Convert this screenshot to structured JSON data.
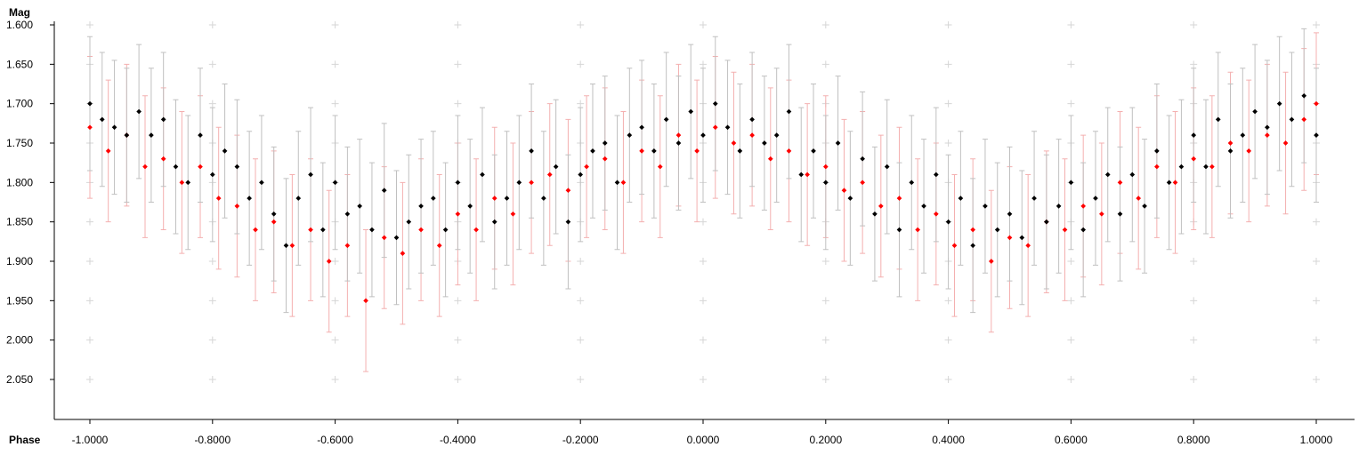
{
  "chart_data": {
    "type": "scatter",
    "title": "",
    "xlabel": "Phase",
    "ylabel": "Mag",
    "xlim": [
      -1.1,
      1.1
    ],
    "ylim": [
      1.6,
      2.1
    ],
    "y_inverted": true,
    "grid": "plus-markers",
    "x_ticks": [
      -1.0,
      -0.8,
      -0.6,
      -0.4,
      -0.2,
      0.0,
      0.2,
      0.4,
      0.6,
      0.8,
      1.0
    ],
    "x_tick_labels": [
      "-1.0000",
      "-0.8000",
      "-0.6000",
      "-0.4000",
      "-0.2000",
      "0.0000",
      "0.2000",
      "0.4000",
      "0.6000",
      "0.8000",
      "1.0000"
    ],
    "y_ticks": [
      1.6,
      1.65,
      1.7,
      1.75,
      1.8,
      1.85,
      1.9,
      1.95,
      2.0,
      2.05
    ],
    "y_tick_labels": [
      "1.600",
      "1.650",
      "1.700",
      "1.750",
      "1.800",
      "1.850",
      "1.900",
      "1.950",
      "2.000",
      "2.050"
    ],
    "series": [
      {
        "color": "#000000",
        "errorbar_color": "#c0c0c0",
        "points": [
          [
            -1.0,
            1.7
          ],
          [
            -0.98,
            1.72
          ],
          [
            -0.96,
            1.73
          ],
          [
            -0.94,
            1.74
          ],
          [
            -0.92,
            1.71
          ],
          [
            -0.9,
            1.74
          ],
          [
            -0.88,
            1.72
          ],
          [
            -0.86,
            1.78
          ],
          [
            -0.84,
            1.8
          ],
          [
            -0.82,
            1.74
          ],
          [
            -0.8,
            1.79
          ],
          [
            -0.78,
            1.76
          ],
          [
            -0.76,
            1.78
          ],
          [
            -0.74,
            1.82
          ],
          [
            -0.72,
            1.8
          ],
          [
            -0.7,
            1.84
          ],
          [
            -0.68,
            1.88
          ],
          [
            -0.66,
            1.82
          ],
          [
            -0.64,
            1.79
          ],
          [
            -0.62,
            1.86
          ],
          [
            -0.6,
            1.8
          ],
          [
            -0.58,
            1.84
          ],
          [
            -0.56,
            1.83
          ],
          [
            -0.54,
            1.86
          ],
          [
            -0.52,
            1.81
          ],
          [
            -0.5,
            1.87
          ],
          [
            -0.48,
            1.85
          ],
          [
            -0.46,
            1.83
          ],
          [
            -0.44,
            1.82
          ],
          [
            -0.42,
            1.86
          ],
          [
            -0.4,
            1.8
          ],
          [
            -0.38,
            1.83
          ],
          [
            -0.36,
            1.79
          ],
          [
            -0.34,
            1.85
          ],
          [
            -0.32,
            1.82
          ],
          [
            -0.3,
            1.8
          ],
          [
            -0.28,
            1.76
          ],
          [
            -0.26,
            1.82
          ],
          [
            -0.24,
            1.78
          ],
          [
            -0.22,
            1.85
          ],
          [
            -0.2,
            1.79
          ],
          [
            -0.18,
            1.76
          ],
          [
            -0.16,
            1.75
          ],
          [
            -0.14,
            1.8
          ],
          [
            -0.12,
            1.74
          ],
          [
            -0.1,
            1.73
          ],
          [
            -0.08,
            1.76
          ],
          [
            -0.06,
            1.72
          ],
          [
            -0.04,
            1.75
          ],
          [
            -0.02,
            1.71
          ],
          [
            0.0,
            1.74
          ],
          [
            0.02,
            1.7
          ],
          [
            0.04,
            1.73
          ],
          [
            0.06,
            1.76
          ],
          [
            0.08,
            1.72
          ],
          [
            0.1,
            1.75
          ],
          [
            0.12,
            1.74
          ],
          [
            0.14,
            1.71
          ],
          [
            0.16,
            1.79
          ],
          [
            0.18,
            1.76
          ],
          [
            0.2,
            1.8
          ],
          [
            0.22,
            1.75
          ],
          [
            0.24,
            1.82
          ],
          [
            0.26,
            1.77
          ],
          [
            0.28,
            1.84
          ],
          [
            0.3,
            1.78
          ],
          [
            0.32,
            1.86
          ],
          [
            0.34,
            1.8
          ],
          [
            0.36,
            1.83
          ],
          [
            0.38,
            1.79
          ],
          [
            0.4,
            1.85
          ],
          [
            0.42,
            1.82
          ],
          [
            0.44,
            1.88
          ],
          [
            0.46,
            1.83
          ],
          [
            0.48,
            1.86
          ],
          [
            0.5,
            1.84
          ],
          [
            0.52,
            1.87
          ],
          [
            0.54,
            1.82
          ],
          [
            0.56,
            1.85
          ],
          [
            0.58,
            1.83
          ],
          [
            0.6,
            1.8
          ],
          [
            0.62,
            1.86
          ],
          [
            0.64,
            1.82
          ],
          [
            0.66,
            1.79
          ],
          [
            0.68,
            1.84
          ],
          [
            0.7,
            1.79
          ],
          [
            0.72,
            1.83
          ],
          [
            0.74,
            1.76
          ],
          [
            0.76,
            1.8
          ],
          [
            0.78,
            1.78
          ],
          [
            0.8,
            1.74
          ],
          [
            0.82,
            1.78
          ],
          [
            0.84,
            1.72
          ],
          [
            0.86,
            1.76
          ],
          [
            0.88,
            1.74
          ],
          [
            0.9,
            1.71
          ],
          [
            0.92,
            1.73
          ],
          [
            0.94,
            1.7
          ],
          [
            0.96,
            1.72
          ],
          [
            0.98,
            1.69
          ],
          [
            1.0,
            1.74
          ]
        ]
      },
      {
        "color": "#ff0000",
        "errorbar_color": "#f4b0b0",
        "points": [
          [
            -1.0,
            1.73
          ],
          [
            -0.97,
            1.76
          ],
          [
            -0.94,
            1.74
          ],
          [
            -0.91,
            1.78
          ],
          [
            -0.88,
            1.77
          ],
          [
            -0.85,
            1.8
          ],
          [
            -0.82,
            1.78
          ],
          [
            -0.79,
            1.82
          ],
          [
            -0.76,
            1.83
          ],
          [
            -0.73,
            1.86
          ],
          [
            -0.7,
            1.85
          ],
          [
            -0.67,
            1.88
          ],
          [
            -0.64,
            1.86
          ],
          [
            -0.61,
            1.9
          ],
          [
            -0.58,
            1.88
          ],
          [
            -0.55,
            1.95
          ],
          [
            -0.52,
            1.87
          ],
          [
            -0.49,
            1.89
          ],
          [
            -0.46,
            1.86
          ],
          [
            -0.43,
            1.88
          ],
          [
            -0.4,
            1.84
          ],
          [
            -0.37,
            1.86
          ],
          [
            -0.34,
            1.82
          ],
          [
            -0.31,
            1.84
          ],
          [
            -0.28,
            1.8
          ],
          [
            -0.25,
            1.79
          ],
          [
            -0.22,
            1.81
          ],
          [
            -0.19,
            1.78
          ],
          [
            -0.16,
            1.77
          ],
          [
            -0.13,
            1.8
          ],
          [
            -0.1,
            1.76
          ],
          [
            -0.07,
            1.78
          ],
          [
            -0.04,
            1.74
          ],
          [
            -0.01,
            1.76
          ],
          [
            0.02,
            1.73
          ],
          [
            0.05,
            1.75
          ],
          [
            0.08,
            1.74
          ],
          [
            0.11,
            1.77
          ],
          [
            0.14,
            1.76
          ],
          [
            0.17,
            1.79
          ],
          [
            0.2,
            1.78
          ],
          [
            0.23,
            1.81
          ],
          [
            0.26,
            1.8
          ],
          [
            0.29,
            1.83
          ],
          [
            0.32,
            1.82
          ],
          [
            0.35,
            1.86
          ],
          [
            0.38,
            1.84
          ],
          [
            0.41,
            1.88
          ],
          [
            0.44,
            1.86
          ],
          [
            0.47,
            1.9
          ],
          [
            0.5,
            1.87
          ],
          [
            0.53,
            1.88
          ],
          [
            0.56,
            1.85
          ],
          [
            0.59,
            1.86
          ],
          [
            0.62,
            1.83
          ],
          [
            0.65,
            1.84
          ],
          [
            0.68,
            1.8
          ],
          [
            0.71,
            1.82
          ],
          [
            0.74,
            1.78
          ],
          [
            0.77,
            1.8
          ],
          [
            0.8,
            1.77
          ],
          [
            0.83,
            1.78
          ],
          [
            0.86,
            1.75
          ],
          [
            0.89,
            1.76
          ],
          [
            0.92,
            1.74
          ],
          [
            0.95,
            1.75
          ],
          [
            0.98,
            1.72
          ],
          [
            1.0,
            1.7
          ]
        ]
      }
    ]
  }
}
